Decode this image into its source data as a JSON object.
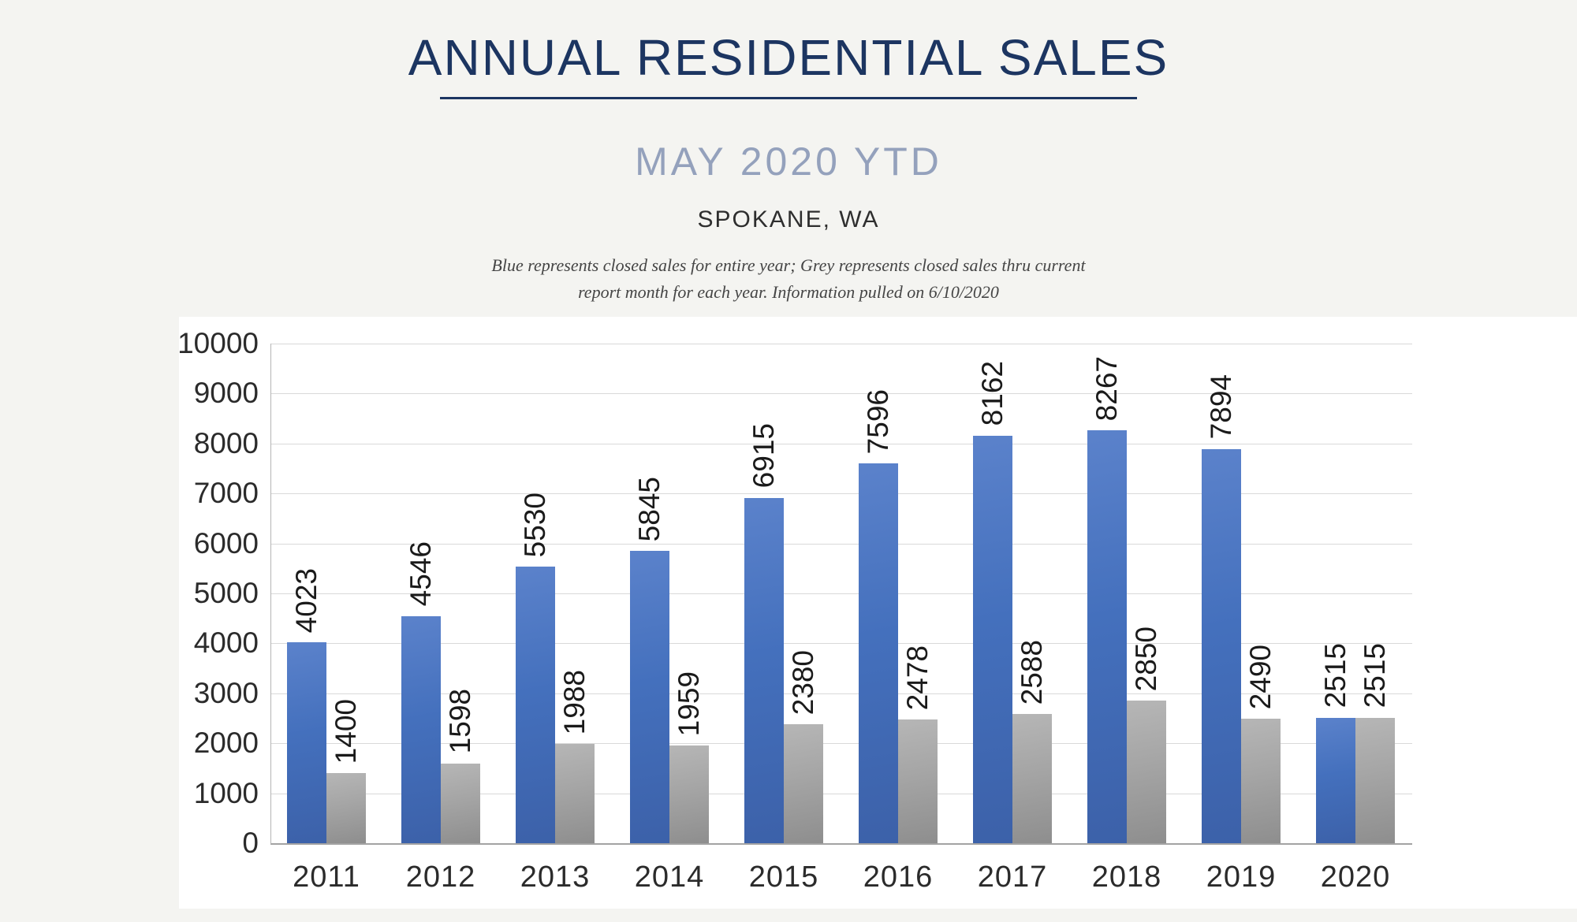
{
  "header": {
    "title": "ANNUAL RESIDENTIAL SALES",
    "subtitle": "MAY 2020 YTD",
    "location": "SPOKANE, WA",
    "note_line1": "Blue represents closed sales for entire year; Grey represents closed sales thru current",
    "note_line2": "report month for each year.  Information pulled on 6/10/2020"
  },
  "colors": {
    "title_navy": "#1c3561",
    "subtitle_grey_blue": "#94a1bc",
    "bar_blue": "#4470bd",
    "bar_grey": "#a5a5a5",
    "gridline": "#d9d9d9",
    "axis_line": "#a3a3a3"
  },
  "chart_data": {
    "type": "bar",
    "title": "ANNUAL RESIDENTIAL SALES — MAY 2020 YTD — SPOKANE, WA",
    "categories": [
      "2011",
      "2012",
      "2013",
      "2014",
      "2015",
      "2016",
      "2017",
      "2018",
      "2019",
      "2020"
    ],
    "series": [
      {
        "name": "Closed sales for entire year (blue)",
        "color_key": "blue",
        "values": [
          4023,
          4546,
          5530,
          5845,
          6915,
          7596,
          8162,
          8267,
          7894,
          2515
        ]
      },
      {
        "name": "Closed sales thru current report month (grey)",
        "color_key": "grey",
        "values": [
          1400,
          1598,
          1988,
          1959,
          2380,
          2478,
          2588,
          2850,
          2490,
          2515
        ]
      }
    ],
    "xlabel": "",
    "ylabel": "",
    "ylim": [
      0,
      10000
    ],
    "y_ticks": [
      0,
      1000,
      2000,
      3000,
      4000,
      5000,
      6000,
      7000,
      8000,
      9000,
      10000
    ],
    "grid": "horizontal",
    "legend": "none",
    "bar_value_labels": "rotated-vertical"
  }
}
